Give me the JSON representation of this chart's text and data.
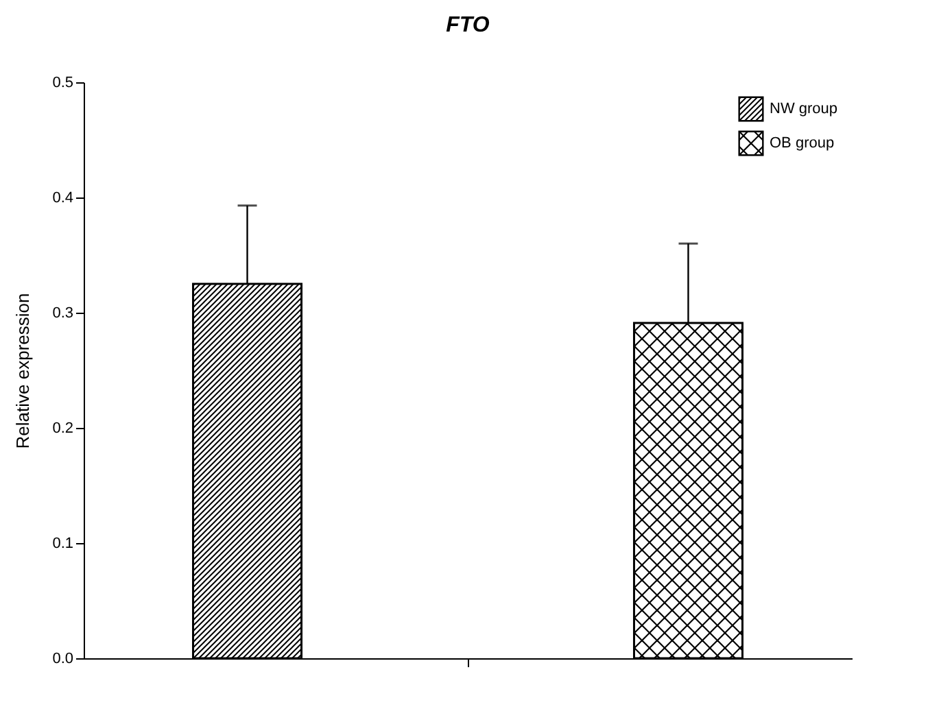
{
  "chart_data": {
    "type": "bar",
    "title": "FTO",
    "ylabel": "Relative expression",
    "categories": [
      null
    ],
    "series": [
      {
        "name": "NW group",
        "color": "#000000",
        "values": [
          0.325
        ],
        "errors": [
          0.068
        ]
      },
      {
        "name": "OB group",
        "color": "#000000",
        "values": [
          0.291
        ],
        "errors": [
          0.069
        ]
      }
    ],
    "ylim": [
      0,
      0.5
    ],
    "yticks": [
      {
        "value": 0,
        "label": "0.0"
      },
      0.1,
      0.2,
      0.3,
      0.4,
      0.5
    ],
    "grid": false,
    "legend": "top right",
    "tick_labels": "y"
  }
}
